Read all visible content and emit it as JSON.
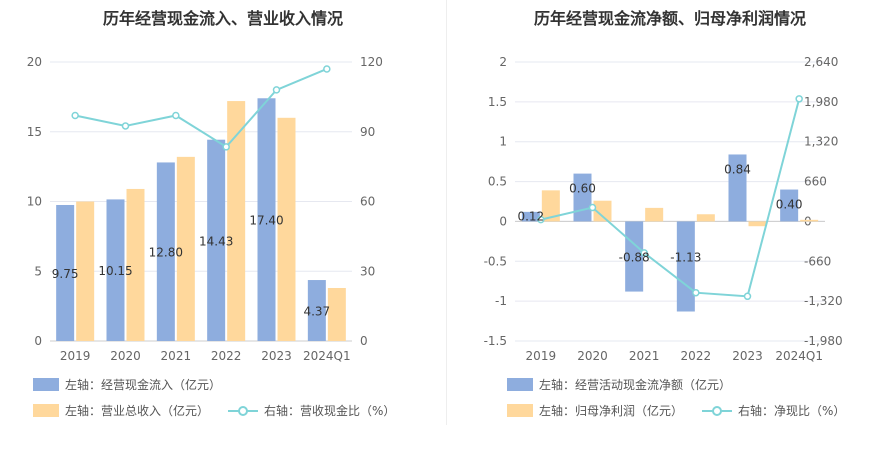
{
  "colors": {
    "blue": "#8eadde",
    "orange": "#ffd89c",
    "teal": "#7fd4d8",
    "grid": "#e6e8f0"
  },
  "chart_data": [
    {
      "type": "bar",
      "title": "历年经营现金流入、营业收入情况",
      "categories": [
        "2019",
        "2020",
        "2021",
        "2022",
        "2023",
        "2024Q1"
      ],
      "left_axis": {
        "min": 0,
        "max": 20,
        "ticks": [
          "0",
          "5",
          "10",
          "15",
          "20"
        ]
      },
      "right_axis": {
        "min": 0,
        "max": 120,
        "ticks": [
          "0",
          "30",
          "60",
          "90",
          "120"
        ]
      },
      "series": [
        {
          "name": "左轴：经营现金流入（亿元）",
          "axis": "left",
          "kind": "bar",
          "color": "#8eadde",
          "values": [
            9.75,
            10.15,
            12.8,
            14.43,
            17.4,
            4.37
          ],
          "labels": [
            "9.75",
            "10.15",
            "12.80",
            "14.43",
            "17.40",
            "4.37"
          ]
        },
        {
          "name": "左轴：营业总收入（亿元）",
          "axis": "left",
          "kind": "bar",
          "color": "#ffd89c",
          "values": [
            10.0,
            10.9,
            13.2,
            17.2,
            16.0,
            3.8
          ]
        },
        {
          "name": "右轴：营收现金比（%）",
          "axis": "right",
          "kind": "line",
          "color": "#7fd4d8",
          "values": [
            97,
            92.5,
            97,
            83.5,
            108,
            117
          ]
        }
      ]
    },
    {
      "type": "bar",
      "title": "历年经营现金流净额、归母净利润情况",
      "categories": [
        "2019",
        "2020",
        "2021",
        "2022",
        "2023",
        "2024Q1"
      ],
      "left_axis": {
        "min": -1.5,
        "max": 2,
        "ticks": [
          "-1.5",
          "-1",
          "-0.5",
          "0",
          "0.5",
          "1",
          "1.5",
          "2"
        ]
      },
      "right_axis": {
        "min": -1980,
        "max": 2640,
        "ticks": [
          "-1,980",
          "-1,320",
          "-660",
          "0",
          "660",
          "1,320",
          "1,980",
          "2,640"
        ]
      },
      "series": [
        {
          "name": "左轴：经营活动现金流净额（亿元）",
          "axis": "left",
          "kind": "bar",
          "color": "#8eadde",
          "values": [
            0.12,
            0.6,
            -0.88,
            -1.13,
            0.84,
            0.4
          ],
          "labels": [
            "0.12",
            "0.60",
            "-0.88",
            "-1.13",
            "0.84",
            "0.40"
          ]
        },
        {
          "name": "左轴：归母净利润（亿元）",
          "axis": "left",
          "kind": "bar",
          "color": "#ffd89c",
          "values": [
            0.39,
            0.26,
            0.17,
            0.09,
            -0.06,
            0.02
          ]
        },
        {
          "name": "右轴：净现比（%）",
          "axis": "right",
          "kind": "line",
          "color": "#7fd4d8",
          "values": [
            30,
            230,
            -520,
            -1180,
            -1240,
            2030
          ]
        }
      ]
    }
  ]
}
